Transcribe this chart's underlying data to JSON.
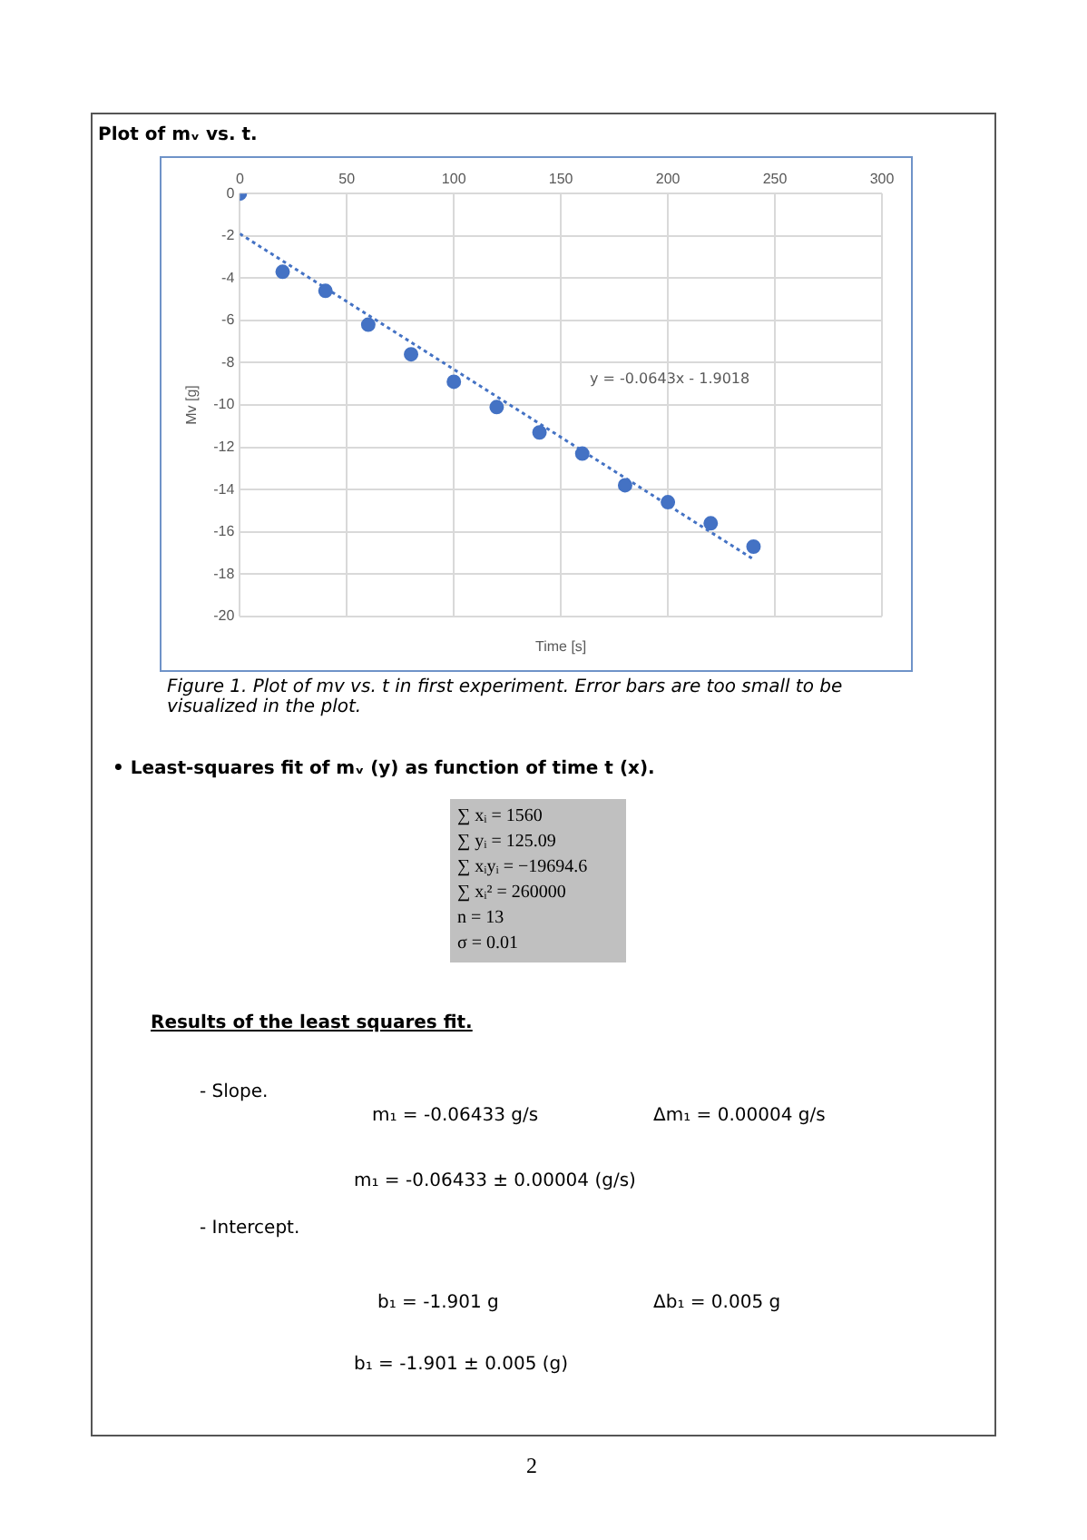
{
  "chart_data": {
    "type": "scatter",
    "title": "Plot of mᵥ vs. t.",
    "xlabel": "Time [s]",
    "ylabel": "Mv [g]",
    "x": [
      0,
      20,
      40,
      60,
      80,
      100,
      120,
      140,
      160,
      180,
      200,
      220,
      240
    ],
    "series": [
      {
        "color": "#4472c4",
        "marker": "circle",
        "values": [
          0,
          -3.7,
          -4.6,
          -6.2,
          -7.6,
          -8.9,
          -10.1,
          -11.3,
          -12.3,
          -13.8,
          -14.6,
          -15.6,
          -16.7
        ]
      },
      {
        "type": "line",
        "color": "#4472c4",
        "line_style": "dotted",
        "marker": "none",
        "x": [
          0,
          240
        ],
        "values": [
          -1.9,
          -17.3
        ]
      }
    ],
    "xlim": [
      0,
      300
    ],
    "xticks": [
      0,
      50,
      100,
      150,
      200,
      250,
      300
    ],
    "ylim": [
      -20,
      0
    ],
    "yticks": [
      -20,
      -18,
      -16,
      -14,
      -12,
      -10,
      -8,
      -6,
      -4,
      -2,
      0
    ],
    "grid": true,
    "legend": false,
    "annotations": [
      "y = -0.0643x - 1.9018",
      "Figure 1. Plot of mv vs. t in first experiment. Error bars are too small to be visualized in the plot.",
      "• Least-squares fit of mᵥ (y) as function of time t (x).",
      "∑ xᵢ = 1560",
      "∑ yᵢ = 125.09",
      "∑ xᵢyᵢ = −19694.6",
      "∑ xᵢ² = 260000",
      "n = 13",
      "σ = 0.01",
      "Results of the least squares fit.",
      "- Slope.",
      "m₁ = -0.06433 g/s",
      "Δm₁ = 0.00004 g/s",
      "m₁ = -0.06433 ± 0.00004 (g/s)",
      "- Intercept.",
      "b₁ = -1.901 g",
      "Δb₁ = 0.005 g",
      "b₁ = -1.901 ± 0.005 (g)",
      "2"
    ]
  }
}
